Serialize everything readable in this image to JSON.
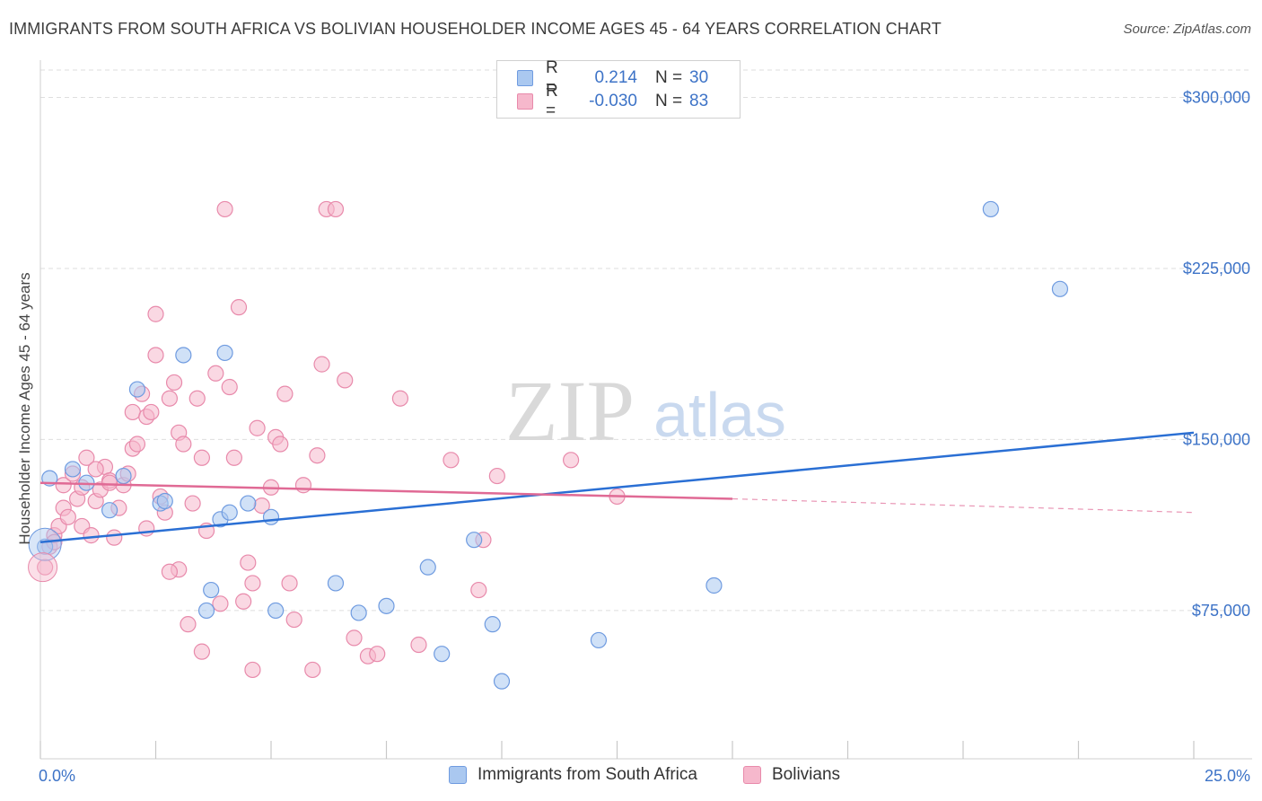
{
  "title": "IMMIGRANTS FROM SOUTH AFRICA VS BOLIVIAN HOUSEHOLDER INCOME AGES 45 - 64 YEARS CORRELATION CHART",
  "source": "Source: ZipAtlas.com",
  "watermark": {
    "zip": "ZIP",
    "atlas": "atlas"
  },
  "legend": {
    "rows": [
      {
        "r_label": "R =",
        "r_value": "0.214",
        "n_label": "N =",
        "n_value": "30"
      },
      {
        "r_label": "R =",
        "r_value": "-0.030",
        "n_label": "N =",
        "n_value": "83"
      }
    ]
  },
  "bottom_legend": [
    "Immigrants from South Africa",
    "Bolivians"
  ],
  "colors": {
    "blue_fill": "#aac8f0",
    "blue_stroke": "#6f9be0",
    "blue_line": "#2a6fd4",
    "pink_fill": "#f6b8cc",
    "pink_stroke": "#e88aab",
    "pink_line": "#e06a95",
    "axis_text": "#3d73c7",
    "grid": "#dedede"
  },
  "chart_data": {
    "type": "scatter",
    "title": "IMMIGRANTS FROM SOUTH AFRICA VS BOLIVIAN HOUSEHOLDER INCOME AGES 45 - 64 YEARS CORRELATION CHART",
    "xlabel": "",
    "ylabel": "Householder Income Ages 45 - 64 years",
    "xlim": [
      0,
      25
    ],
    "ylim": [
      10000,
      312000
    ],
    "x_tick_labels": [
      "0.0%",
      "25.0%"
    ],
    "y_ticks": [
      75000,
      150000,
      225000,
      300000
    ],
    "y_tick_labels": [
      "$75,000",
      "$150,000",
      "$225,000",
      "$300,000"
    ],
    "grid": true,
    "legend_position": "top-center",
    "series": [
      {
        "name": "Immigrants from South Africa",
        "r": 0.214,
        "n": 30,
        "trend": {
          "x": [
            0,
            25
          ],
          "y": [
            105000,
            153000
          ]
        },
        "points": [
          {
            "x": 0.1,
            "y": 103000
          },
          {
            "x": 0.2,
            "y": 133000
          },
          {
            "x": 0.7,
            "y": 137000
          },
          {
            "x": 1.0,
            "y": 131000
          },
          {
            "x": 1.8,
            "y": 134000
          },
          {
            "x": 1.5,
            "y": 119000
          },
          {
            "x": 2.1,
            "y": 172000
          },
          {
            "x": 2.6,
            "y": 122000
          },
          {
            "x": 2.7,
            "y": 123000
          },
          {
            "x": 3.1,
            "y": 187000
          },
          {
            "x": 3.9,
            "y": 115000
          },
          {
            "x": 4.1,
            "y": 118000
          },
          {
            "x": 4.0,
            "y": 188000
          },
          {
            "x": 3.7,
            "y": 84000
          },
          {
            "x": 4.5,
            "y": 122000
          },
          {
            "x": 5.0,
            "y": 116000
          },
          {
            "x": 3.6,
            "y": 75000
          },
          {
            "x": 5.1,
            "y": 75000
          },
          {
            "x": 6.4,
            "y": 87000
          },
          {
            "x": 6.9,
            "y": 74000
          },
          {
            "x": 7.5,
            "y": 77000
          },
          {
            "x": 8.4,
            "y": 94000
          },
          {
            "x": 8.7,
            "y": 56000
          },
          {
            "x": 9.4,
            "y": 106000
          },
          {
            "x": 9.8,
            "y": 69000
          },
          {
            "x": 10.0,
            "y": 44000
          },
          {
            "x": 12.1,
            "y": 62000
          },
          {
            "x": 14.6,
            "y": 86000
          },
          {
            "x": 20.6,
            "y": 251000
          },
          {
            "x": 22.1,
            "y": 216000
          }
        ]
      },
      {
        "name": "Bolivians",
        "r": -0.03,
        "n": 83,
        "trend": {
          "x": [
            0,
            15
          ],
          "y": [
            131000,
            124000
          ],
          "dashed_x": [
            15,
            25
          ],
          "dashed_y": [
            124000,
            118000
          ]
        },
        "points": [
          {
            "x": 0.1,
            "y": 94000
          },
          {
            "x": 0.2,
            "y": 103000
          },
          {
            "x": 0.3,
            "y": 108000
          },
          {
            "x": 0.4,
            "y": 112000
          },
          {
            "x": 0.5,
            "y": 120000
          },
          {
            "x": 0.5,
            "y": 130000
          },
          {
            "x": 0.7,
            "y": 135000
          },
          {
            "x": 0.8,
            "y": 124000
          },
          {
            "x": 0.9,
            "y": 129000
          },
          {
            "x": 0.9,
            "y": 112000
          },
          {
            "x": 1.0,
            "y": 142000
          },
          {
            "x": 1.1,
            "y": 108000
          },
          {
            "x": 1.2,
            "y": 123000
          },
          {
            "x": 1.3,
            "y": 128000
          },
          {
            "x": 1.4,
            "y": 138000
          },
          {
            "x": 1.5,
            "y": 132000
          },
          {
            "x": 1.6,
            "y": 107000
          },
          {
            "x": 1.7,
            "y": 120000
          },
          {
            "x": 1.8,
            "y": 130000
          },
          {
            "x": 1.9,
            "y": 135000
          },
          {
            "x": 2.0,
            "y": 146000
          },
          {
            "x": 2.0,
            "y": 162000
          },
          {
            "x": 2.1,
            "y": 148000
          },
          {
            "x": 2.2,
            "y": 170000
          },
          {
            "x": 2.3,
            "y": 160000
          },
          {
            "x": 2.4,
            "y": 162000
          },
          {
            "x": 2.5,
            "y": 205000
          },
          {
            "x": 2.5,
            "y": 187000
          },
          {
            "x": 2.6,
            "y": 125000
          },
          {
            "x": 2.7,
            "y": 118000
          },
          {
            "x": 2.8,
            "y": 168000
          },
          {
            "x": 2.9,
            "y": 175000
          },
          {
            "x": 3.0,
            "y": 153000
          },
          {
            "x": 3.0,
            "y": 93000
          },
          {
            "x": 3.1,
            "y": 148000
          },
          {
            "x": 3.2,
            "y": 69000
          },
          {
            "x": 3.3,
            "y": 122000
          },
          {
            "x": 3.4,
            "y": 168000
          },
          {
            "x": 3.5,
            "y": 57000
          },
          {
            "x": 3.5,
            "y": 142000
          },
          {
            "x": 3.6,
            "y": 110000
          },
          {
            "x": 3.8,
            "y": 179000
          },
          {
            "x": 3.9,
            "y": 78000
          },
          {
            "x": 4.0,
            "y": 251000
          },
          {
            "x": 4.1,
            "y": 173000
          },
          {
            "x": 4.2,
            "y": 142000
          },
          {
            "x": 4.3,
            "y": 208000
          },
          {
            "x": 4.4,
            "y": 79000
          },
          {
            "x": 4.5,
            "y": 96000
          },
          {
            "x": 4.6,
            "y": 49000
          },
          {
            "x": 4.7,
            "y": 155000
          },
          {
            "x": 4.8,
            "y": 121000
          },
          {
            "x": 5.0,
            "y": 129000
          },
          {
            "x": 5.1,
            "y": 151000
          },
          {
            "x": 5.2,
            "y": 148000
          },
          {
            "x": 5.3,
            "y": 170000
          },
          {
            "x": 5.4,
            "y": 87000
          },
          {
            "x": 5.5,
            "y": 71000
          },
          {
            "x": 5.7,
            "y": 130000
          },
          {
            "x": 5.9,
            "y": 49000
          },
          {
            "x": 6.0,
            "y": 143000
          },
          {
            "x": 6.1,
            "y": 183000
          },
          {
            "x": 6.2,
            "y": 251000
          },
          {
            "x": 6.4,
            "y": 251000
          },
          {
            "x": 6.6,
            "y": 176000
          },
          {
            "x": 6.8,
            "y": 63000
          },
          {
            "x": 7.1,
            "y": 55000
          },
          {
            "x": 7.3,
            "y": 56000
          },
          {
            "x": 7.8,
            "y": 168000
          },
          {
            "x": 8.2,
            "y": 60000
          },
          {
            "x": 8.9,
            "y": 141000
          },
          {
            "x": 9.5,
            "y": 84000
          },
          {
            "x": 9.6,
            "y": 106000
          },
          {
            "x": 9.9,
            "y": 134000
          },
          {
            "x": 11.5,
            "y": 141000
          },
          {
            "x": 12.5,
            "y": 125000
          },
          {
            "x": 0.3,
            "y": 105000
          },
          {
            "x": 0.6,
            "y": 116000
          },
          {
            "x": 1.2,
            "y": 137000
          },
          {
            "x": 1.5,
            "y": 131000
          },
          {
            "x": 2.3,
            "y": 111000
          },
          {
            "x": 2.8,
            "y": 92000
          },
          {
            "x": 4.6,
            "y": 87000
          }
        ]
      }
    ]
  }
}
